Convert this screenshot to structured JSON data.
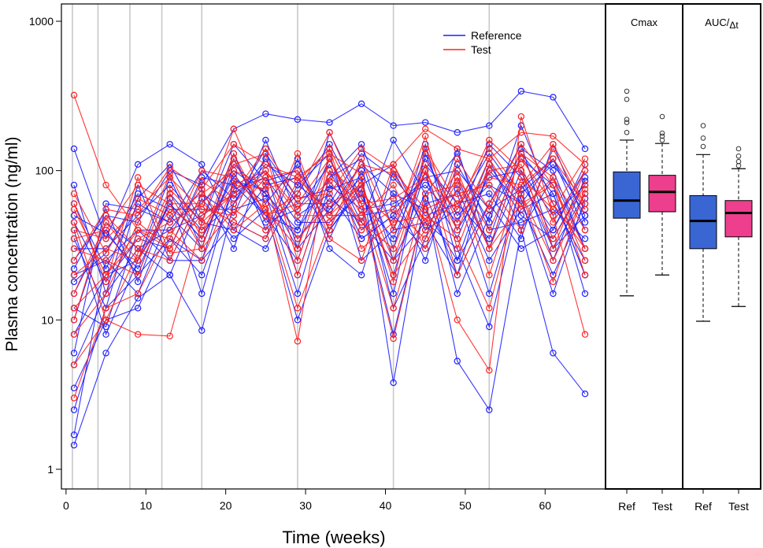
{
  "chart_data": {
    "type": "line",
    "title": "",
    "xlabel": "Time (weeks)",
    "ylabel": "Plasma concentration (ng/ml)",
    "yscale": "log",
    "xlim": [
      0,
      66
    ],
    "ylim": [
      1,
      1000
    ],
    "x_ticks": [
      {
        "v": 0,
        "label": "0"
      },
      {
        "v": 10,
        "label": "10"
      },
      {
        "v": 20,
        "label": "20"
      },
      {
        "v": 30,
        "label": "30"
      },
      {
        "v": 40,
        "label": "40"
      },
      {
        "v": 50,
        "label": "50"
      },
      {
        "v": 60,
        "label": "60"
      }
    ],
    "y_ticks": [
      {
        "v": 1,
        "label": "1"
      },
      {
        "v": 10,
        "label": "10"
      },
      {
        "v": 100,
        "label": "100"
      },
      {
        "v": 1000,
        "label": "1000"
      }
    ],
    "dosing_lines_weeks": [
      0.8,
      4,
      8,
      12,
      17,
      29,
      41,
      53
    ],
    "sampling_weeks": [
      1,
      5,
      9,
      13,
      17,
      21,
      25,
      29,
      33,
      37,
      41,
      45,
      49,
      53,
      57,
      61,
      65
    ],
    "legend": {
      "position": "top-center",
      "entries": [
        {
          "name": "Reference",
          "color": "#1f1fff"
        },
        {
          "name": "Test",
          "color": "#ff2020"
        }
      ]
    },
    "series": [
      {
        "name": "Reference",
        "color": "#1f1fff",
        "subjects": [
          [
            1.45,
            6,
            14,
            20,
            8.5,
            60,
            140,
            30,
            55,
            90,
            12,
            35,
            140,
            30,
            130,
            70,
            20
          ],
          [
            2.5,
            12,
            20,
            35,
            25,
            110,
            70,
            40,
            120,
            45,
            25,
            70,
            20,
            60,
            150,
            30,
            50
          ],
          [
            5,
            15,
            30,
            40,
            50,
            70,
            100,
            20,
            90,
            150,
            40,
            120,
            50,
            80,
            60,
            120,
            40
          ],
          [
            8,
            20,
            25,
            60,
            35,
            90,
            60,
            110,
            40,
            80,
            110,
            40,
            90,
            30,
            100,
            50,
            80
          ],
          [
            12,
            9,
            40,
            25,
            70,
            50,
            160,
            50,
            70,
            35,
            50,
            90,
            35,
            120,
            40,
            90,
            30
          ],
          [
            20,
            25,
            15,
            50,
            30,
            130,
            40,
            70,
            150,
            60,
            8,
            60,
            70,
            15,
            80,
            40,
            100
          ],
          [
            30,
            30,
            50,
            80,
            45,
            40,
            80,
            90,
            35,
            100,
            30,
            150,
            25,
            100,
            60,
            20,
            60
          ],
          [
            45,
            18,
            35,
            30,
            90,
            80,
            50,
            25,
            100,
            40,
            70,
            25,
            110,
            45,
            200,
            60,
            25
          ],
          [
            15,
            40,
            20,
            70,
            40,
            60,
            120,
            60,
            60,
            130,
            90,
            50,
            60,
            70,
            35,
            150,
            45
          ],
          [
            60,
            22,
            60,
            45,
            60,
            100,
            70,
            15,
            80,
            55,
            60,
            80,
            45,
            150,
            90,
            30,
            70
          ],
          [
            3.5,
            10,
            12,
            35,
            20,
            75,
            90,
            45,
            45,
            70,
            20,
            100,
            15,
            50,
            120,
            80,
            15
          ],
          [
            25,
            50,
            45,
            100,
            80,
            190,
            240,
            220,
            210,
            280,
            200,
            210,
            180,
            200,
            340,
            310,
            140
          ],
          [
            140,
            35,
            110,
            150,
            110,
            40,
            30,
            80,
            130,
            25,
            40,
            45,
            30,
            9,
            70,
            110,
            55
          ],
          [
            18,
            28,
            70,
            55,
            55,
            55,
            65,
            35,
            65,
            45,
            160,
            70,
            130,
            40,
            45,
            55,
            35
          ],
          [
            10,
            45,
            30,
            20,
            65,
            35,
            55,
            10,
            40,
            75,
            15,
            130,
            40,
            90,
            100,
            25,
            90
          ],
          [
            40,
            8,
            25,
            90,
            30,
            120,
            45,
            55,
            110,
            35,
            50,
            30,
            75,
            25,
            55,
            70,
            20
          ],
          [
            6,
            60,
            55,
            45,
            100,
            65,
            110,
            80,
            55,
            110,
            70,
            55,
            25,
            60,
            30,
            40,
            110
          ],
          [
            80,
            15,
            80,
            25,
            25,
            45,
            35,
            120,
            30,
            20,
            100,
            40,
            55,
            130,
            65,
            15,
            65
          ],
          [
            22,
            55,
            18,
            65,
            15,
            85,
            75,
            30,
            180,
            65,
            35,
            110,
            60,
            35,
            140,
            100,
            30
          ],
          [
            1.7,
            25,
            40,
            40,
            75,
            30,
            130,
            65,
            75,
            90,
            3.8,
            65,
            5.3,
            2.5,
            40,
            6,
            3.2
          ],
          [
            35,
            12,
            65,
            110,
            45,
            150,
            85,
            100,
            50,
            50,
            55,
            90,
            100,
            55,
            75,
            120,
            50
          ],
          [
            50,
            38,
            22,
            60,
            35,
            95,
            50,
            40,
            90,
            120,
            25,
            45,
            20,
            110,
            50,
            35,
            85
          ]
        ]
      },
      {
        "name": "Test",
        "color": "#ff2020",
        "subjects": [
          [
            320,
            80,
            40,
            30,
            50,
            70,
            90,
            35,
            60,
            80,
            20,
            40,
            90,
            40,
            120,
            60,
            30
          ],
          [
            5,
            10,
            8,
            7.8,
            45,
            190,
            60,
            7.2,
            140,
            55,
            7.5,
            60,
            10,
            4.6,
            230,
            50,
            8
          ],
          [
            12,
            20,
            35,
            45,
            60,
            110,
            130,
            25,
            100,
            70,
            45,
            140,
            60,
            90,
            80,
            150,
            60
          ],
          [
            20,
            30,
            25,
            55,
            40,
            80,
            75,
            90,
            50,
            110,
            95,
            45,
            100,
            30,
            130,
            45,
            100
          ],
          [
            8,
            15,
            45,
            30,
            85,
            60,
            100,
            55,
            85,
            45,
            30,
            100,
            40,
            120,
            55,
            90,
            40
          ],
          [
            30,
            25,
            20,
            70,
            30,
            120,
            50,
            70,
            180,
            60,
            12,
            70,
            80,
            20,
            90,
            55,
            120
          ],
          [
            40,
            35,
            55,
            90,
            55,
            50,
            90,
            100,
            40,
            120,
            40,
            170,
            30,
            110,
            70,
            25,
            70
          ],
          [
            55,
            20,
            40,
            35,
            100,
            90,
            55,
            30,
            120,
            50,
            80,
            30,
            120,
            55,
            150,
            80,
            30
          ],
          [
            15,
            45,
            25,
            75,
            45,
            70,
            140,
            65,
            70,
            140,
            100,
            55,
            70,
            80,
            40,
            140,
            55
          ],
          [
            70,
            28,
            65,
            50,
            70,
            100,
            80,
            20,
            90,
            60,
            65,
            90,
            55,
            160,
            100,
            35,
            80
          ],
          [
            3,
            12,
            15,
            40,
            25,
            80,
            100,
            50,
            50,
            80,
            25,
            110,
            20,
            60,
            130,
            90,
            20
          ],
          [
            25,
            55,
            50,
            105,
            75,
            150,
            110,
            90,
            130,
            95,
            110,
            190,
            140,
            120,
            180,
            170,
            110
          ],
          [
            35,
            40,
            80,
            60,
            60,
            45,
            35,
            85,
            140,
            30,
            45,
            50,
            35,
            12,
            80,
            120,
            60
          ],
          [
            10,
            50,
            30,
            25,
            70,
            40,
            60,
            12,
            45,
            85,
            18,
            140,
            45,
            100,
            110,
            30,
            100
          ],
          [
            45,
            10,
            28,
            95,
            35,
            130,
            50,
            60,
            120,
            40,
            55,
            35,
            85,
            30,
            60,
            80,
            25
          ],
          [
            60,
            18,
            90,
            28,
            30,
            55,
            40,
            130,
            35,
            25,
            110,
            45,
            60,
            140,
            70,
            18,
            75
          ]
        ]
      }
    ],
    "box_panels": [
      {
        "title_main": "Cmax",
        "title_sub": "",
        "categories": [
          "Ref",
          "Test"
        ],
        "boxes": [
          {
            "name": "Ref",
            "color": "#3a66d4",
            "whisker_low": 14.5,
            "q1": 48,
            "median": 63,
            "q3": 98,
            "whisker_high": 160,
            "outliers": [
              180,
              210,
              220,
              300,
              340
            ]
          },
          {
            "name": "Test",
            "color": "#ee3e8e",
            "whisker_low": 20,
            "q1": 53,
            "median": 72,
            "q3": 93,
            "whisker_high": 152,
            "outliers": [
              160,
              170,
              178,
              230
            ]
          }
        ]
      },
      {
        "title_main": "AUC/",
        "title_sub": "Δt",
        "categories": [
          "Ref",
          "Test"
        ],
        "boxes": [
          {
            "name": "Ref",
            "color": "#3a66d4",
            "whisker_low": 9.8,
            "q1": 30,
            "median": 46,
            "q3": 68,
            "whisker_high": 128,
            "outliers": [
              145,
              165,
              200
            ]
          },
          {
            "name": "Test",
            "color": "#ee3e8e",
            "whisker_low": 12.3,
            "q1": 36,
            "median": 52,
            "q3": 63,
            "whisker_high": 103,
            "outliers": [
              108,
              115,
              125,
              140
            ]
          }
        ]
      }
    ]
  }
}
